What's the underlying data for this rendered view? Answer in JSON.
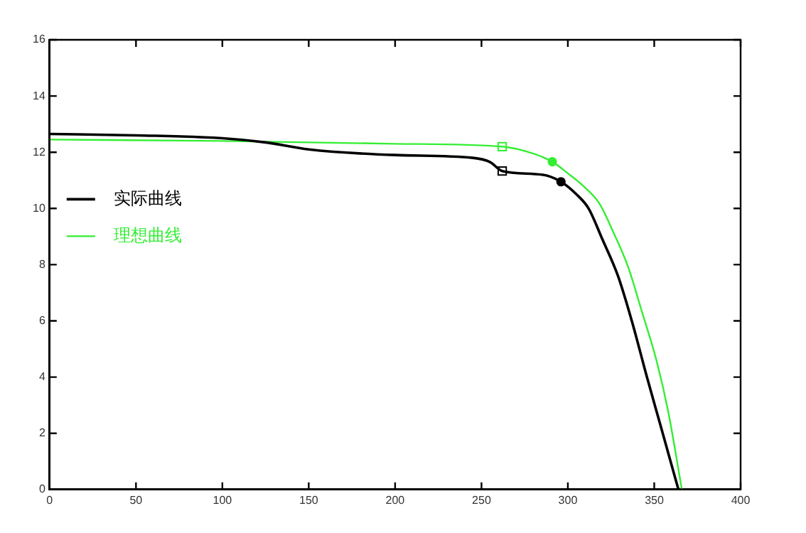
{
  "chart_data": {
    "type": "line",
    "xlim": [
      0,
      400
    ],
    "ylim": [
      0,
      16
    ],
    "xticks": [
      0,
      50,
      100,
      150,
      200,
      250,
      300,
      350,
      400
    ],
    "yticks": [
      0,
      2,
      4,
      6,
      8,
      10,
      12,
      14,
      16
    ],
    "grid": false,
    "legend": "left",
    "marker": "none",
    "line_style": "solid",
    "series": [
      {
        "name": "实际曲线",
        "color": "#000000",
        "x": [
          0,
          50,
          100,
          125,
          150,
          200,
          245,
          255,
          262,
          285,
          296,
          305,
          312,
          320,
          329,
          337,
          346,
          354,
          364
        ],
        "values": [
          12.65,
          12.6,
          12.5,
          12.35,
          12.1,
          11.9,
          11.8,
          11.65,
          11.33,
          11.2,
          10.95,
          10.5,
          10.0,
          8.9,
          7.6,
          6.0,
          3.95,
          2.2,
          0
        ]
      },
      {
        "name": "理想曲线",
        "color": "#33ee33",
        "x": [
          0,
          100,
          200,
          262,
          280,
          291,
          300,
          308,
          318,
          326,
          335,
          343,
          351,
          358,
          366
        ],
        "values": [
          12.45,
          12.4,
          12.3,
          12.2,
          11.95,
          11.66,
          11.25,
          10.85,
          10.2,
          9.2,
          7.9,
          6.3,
          4.66,
          2.8,
          0
        ]
      },
      {
        "type": "scatter",
        "marker": "square",
        "color": "#000000",
        "x": [
          262
        ],
        "values": [
          11.33
        ]
      },
      {
        "type": "scatter",
        "marker": "circle",
        "color": "#000000",
        "x": [
          296
        ],
        "values": [
          10.95
        ]
      },
      {
        "type": "scatter",
        "marker": "square",
        "color": "#33ee33",
        "x": [
          262
        ],
        "values": [
          12.2
        ]
      },
      {
        "type": "scatter",
        "marker": "circle",
        "color": "#33ee33",
        "x": [
          291
        ],
        "values": [
          11.66
        ]
      }
    ]
  }
}
